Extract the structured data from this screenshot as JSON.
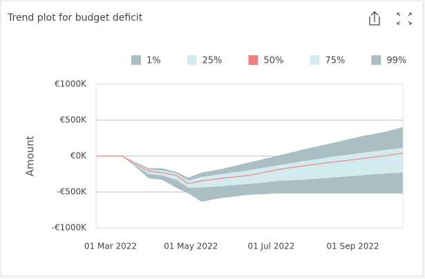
{
  "chart_data": {
    "type": "fan",
    "title": "Trend plot for budget deficit",
    "y_label": "Amount",
    "x": [
      "2022-02-18",
      "2022-03-10",
      "2022-03-19",
      "2022-03-30",
      "2022-04-09",
      "2022-04-20",
      "2022-04-29",
      "2022-05-09",
      "2022-05-24",
      "2022-06-14",
      "2022-07-05",
      "2022-07-26",
      "2022-08-16",
      "2022-09-06",
      "2022-09-27",
      "2022-10-09"
    ],
    "series": [
      {
        "name": "1%",
        "color": "#a9bfc4",
        "values": [
          0,
          0,
          -135000,
          -310000,
          -330000,
          -440000,
          -520000,
          -635000,
          -585000,
          -540000,
          -520000,
          -520000,
          -520000,
          -520000,
          -520000,
          -520000
        ]
      },
      {
        "name": "25%",
        "color": "#d3ebef",
        "values": [
          0,
          0,
          -120000,
          -250000,
          -270000,
          -330000,
          -440000,
          -440000,
          -420000,
          -390000,
          -350000,
          -330000,
          -300000,
          -270000,
          -240000,
          -230000
        ]
      },
      {
        "name": "50%",
        "color": "#f08080",
        "values": [
          0,
          0,
          -105000,
          -210000,
          -230000,
          -270000,
          -385000,
          -345000,
          -310000,
          -270000,
          -190000,
          -135000,
          -85000,
          -40000,
          10000,
          40000
        ]
      },
      {
        "name": "75%",
        "color": "#d3ebef",
        "values": [
          0,
          0,
          -85000,
          -190000,
          -200000,
          -240000,
          -340000,
          -290000,
          -250000,
          -200000,
          -130000,
          -70000,
          -10000,
          40000,
          90000,
          115000
        ]
      },
      {
        "name": "99%",
        "color": "#a9bfc4",
        "values": [
          0,
          0,
          -75000,
          -170000,
          -170000,
          -220000,
          -300000,
          -230000,
          -180000,
          -90000,
          0,
          95000,
          180000,
          270000,
          345000,
          405000
        ]
      }
    ],
    "xlim": [
      "2022-02-18",
      "2022-10-09"
    ],
    "xticks": [
      {
        "value": "2022-03-01",
        "label": "01 Mar 2022"
      },
      {
        "value": "2022-05-01",
        "label": "01 May 2022"
      },
      {
        "value": "2022-07-01",
        "label": "01 Jul 2022"
      },
      {
        "value": "2022-09-01",
        "label": "01 Sep 2022"
      }
    ],
    "ylim": [
      -1000000,
      1000000
    ],
    "yticks": [
      {
        "value": 1000000,
        "label": "€1000K"
      },
      {
        "value": 500000,
        "label": "€500K"
      },
      {
        "value": 0,
        "label": "€0K"
      },
      {
        "value": -500000,
        "label": "-€500K"
      },
      {
        "value": -1000000,
        "label": "-€1000K"
      }
    ],
    "grid": true,
    "legend": "top"
  }
}
